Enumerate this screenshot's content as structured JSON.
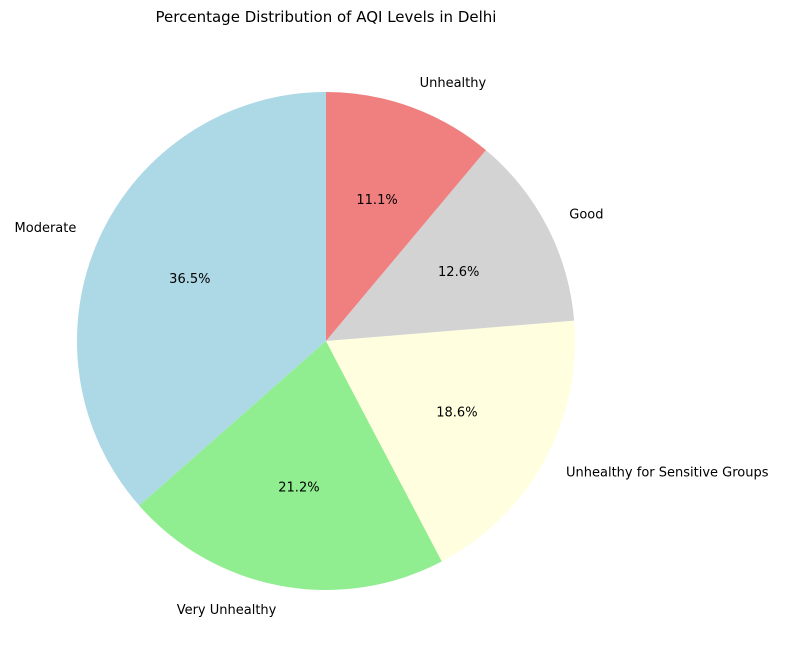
{
  "chart_data": {
    "type": "pie",
    "title": "Percentage Distribution of AQI Levels in Delhi",
    "start_angle_deg": 90,
    "direction": "counterclockwise",
    "slices": [
      {
        "label": "Moderate",
        "value": 36.5,
        "display": "36.5%",
        "color": "#add8e6"
      },
      {
        "label": "Very Unhealthy",
        "value": 21.2,
        "display": "21.2%",
        "color": "#90ee90"
      },
      {
        "label": "Unhealthy for Sensitive Groups",
        "value": 18.6,
        "display": "18.6%",
        "color": "#ffffe0"
      },
      {
        "label": "Good",
        "value": 12.6,
        "display": "12.6%",
        "color": "#d3d3d3"
      },
      {
        "label": "Unhealthy",
        "value": 11.1,
        "display": "11.1%",
        "color": "#f08080"
      }
    ]
  }
}
